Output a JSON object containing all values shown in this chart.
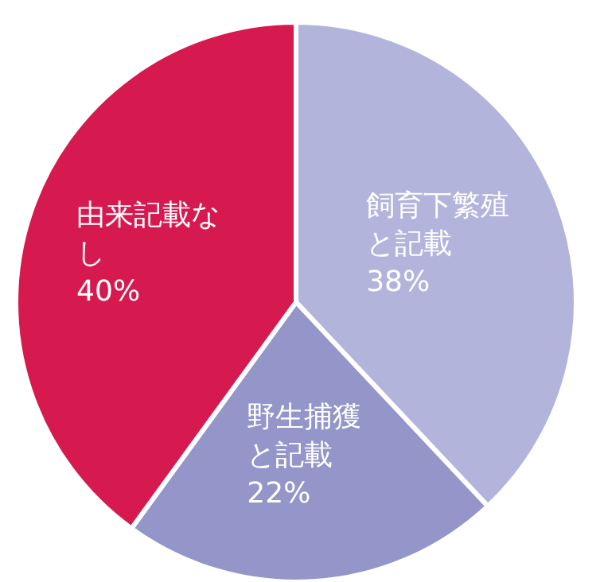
{
  "chart_data": {
    "type": "pie",
    "categories": [
      "飼育下繁殖と記載",
      "野生捕獲と記載",
      "由来記載なし"
    ],
    "values": [
      38,
      22,
      40
    ],
    "value_labels": [
      "38%",
      "22%",
      "40%"
    ],
    "colors": [
      "#b3b4dc",
      "#9495c9",
      "#d61a50"
    ]
  }
}
